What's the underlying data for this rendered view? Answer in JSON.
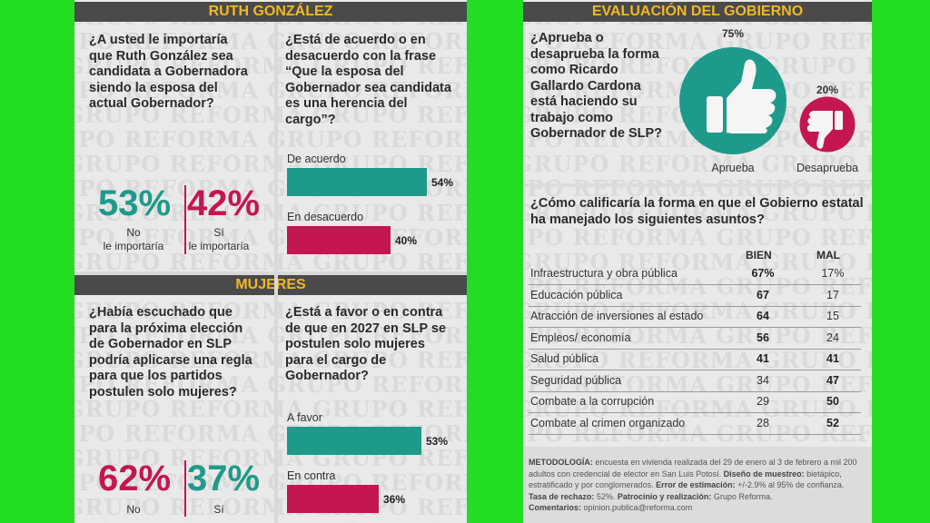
{
  "ruth": {
    "header": "RUTH GONZÁLEZ",
    "q1": "¿A usted le importaría que Ruth González sea candidata a Gobernadora siendo la esposa del actual Gobernador?",
    "p1": "53%",
    "l1a": "No",
    "l1b": "le importaría",
    "p2": "42%",
    "l2a": "Sí",
    "l2b": "le importaría",
    "q2": "¿Está de acuerdo o en desacuerdo con la frase “Que la esposa del Gobernador sea candidata es una herencia del cargo”?"
  },
  "mujeres": {
    "header": "MUJERES",
    "q1": "¿Había escuchado que para la próxima elección de Gobernador en SLP podría aplicarse una regla para que los partidos postulen solo mujeres?",
    "p1": "62%",
    "l1": "No",
    "p2": "37%",
    "l2": "Sí",
    "q2": "¿Está a favor o en contra de que en 2027 en SLP se postulen solo mujeres para el cargo de Gobernador?"
  },
  "gob": {
    "header": "EVALUACIÓN DEL GOBIERNO",
    "q1": "¿Aprueba o desaprueba la forma como Ricardo Gallardo Cardona está haciendo su trabajo como Gobernador de SLP?",
    "q2": "¿Cómo calificaría la forma en que el Gobierno estatal ha manejado los siguientes asuntos?",
    "col_bien": "BIEN",
    "col_mal": "MAL",
    "rows": [
      {
        "label": "Infraestructura y obra pública",
        "bien": "67%",
        "mal": "17%",
        "bold": "bien"
      },
      {
        "label": "Educación pública",
        "bien": "67",
        "mal": "17",
        "bold": "bien"
      },
      {
        "label": "Atracción de inversiones al estado",
        "bien": "64",
        "mal": "15",
        "bold": "bien"
      },
      {
        "label": "Empleos/ economía",
        "bien": "56",
        "mal": "24",
        "bold": "bien"
      },
      {
        "label": "Salud pública",
        "bien": "41",
        "mal": "41",
        "bold": "both"
      },
      {
        "label": "Seguridad pública",
        "bien": "34",
        "mal": "47",
        "bold": "mal"
      },
      {
        "label": "Combate a la corrupción",
        "bien": "29",
        "mal": "50",
        "bold": "mal"
      },
      {
        "label": "Combate al crimen organizado",
        "bien": "28",
        "mal": "52",
        "bold": "mal"
      }
    ]
  },
  "methodology": {
    "t1": "METODOLOGÍA:",
    "s1": " encuesta en vivienda realizada del 29 de enero al 3 de febrero a mil 200 adultos con credencial de elector en San Luis Potosí. ",
    "t2": "Diseño de muestreo:",
    "s2": " bietápico, estratificado y por conglomerados. ",
    "t3": "Error de estimación:",
    "s3": " +/-2.9% al 95% de confianza.",
    "t4": "Tasa de rechazo:",
    "s4": " 52%. ",
    "t5": "Patrocinio y realización:",
    "s5": " Grupo Reforma.",
    "t6": "Comentarios:",
    "s6": " opinion.publica@reforma.com"
  },
  "watermark": "GRUPO REFORMA",
  "colors": {
    "teal": "#1e9a8a",
    "crimson": "#c4174f",
    "gold": "#f2b826",
    "dark": "#4a4a4a"
  },
  "chart_data": [
    {
      "type": "bar",
      "title": "¿Está de acuerdo o en desacuerdo con la frase “Que la esposa del Gobernador sea candidata es una herencia del cargo”?",
      "categories": [
        "De acuerdo",
        "En desacuerdo"
      ],
      "values": [
        54,
        40
      ],
      "value_labels": [
        "54%",
        "40%"
      ]
    },
    {
      "type": "bar",
      "title": "¿Está a favor o en contra de que en 2027 en SLP se postulen solo mujeres para el cargo de Gobernador?",
      "categories": [
        "A favor",
        "En contra"
      ],
      "values": [
        53,
        36
      ],
      "value_labels": [
        "53%",
        "36%"
      ]
    },
    {
      "type": "pie",
      "title": "¿Aprueba o desaprueba la forma como Ricardo Gallardo Cardona está haciendo su trabajo como Gobernador de SLP?",
      "categories": [
        "Aprueba",
        "Desaprueba"
      ],
      "values": [
        75,
        20
      ],
      "value_labels": [
        "75%",
        "20%"
      ]
    }
  ]
}
